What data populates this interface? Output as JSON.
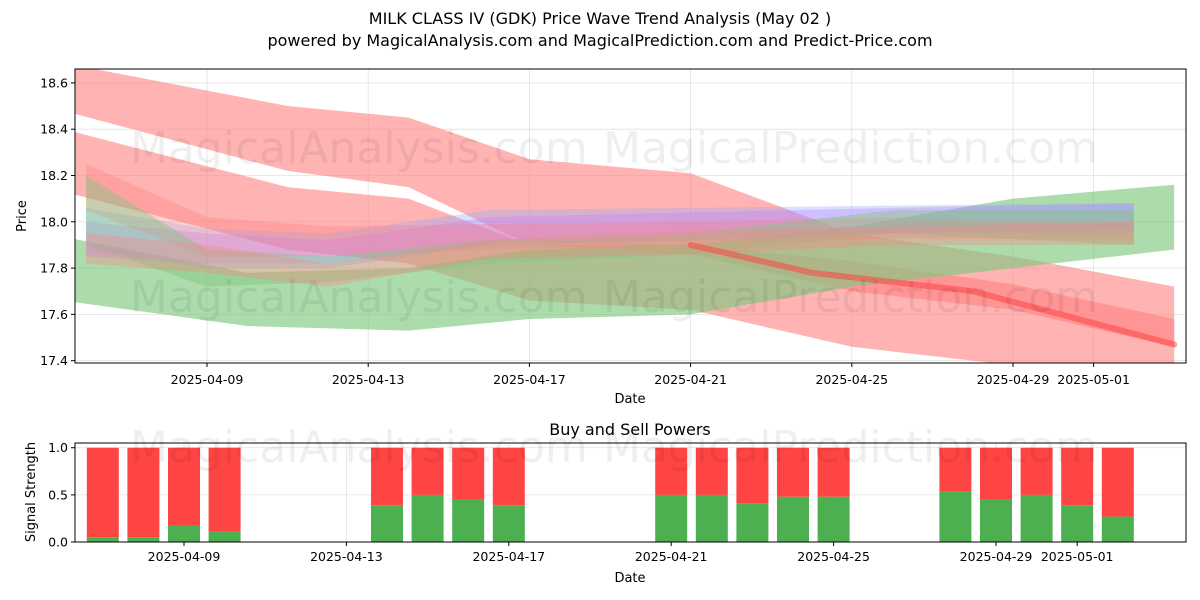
{
  "header": {
    "title": "MILK CLASS IV (GDK) Price Wave Trend Analysis (May 02 )",
    "subtitle": "powered by MagicalAnalysis.com and MagicalPrediction.com and Predict-Price.com"
  },
  "watermarks": [
    "MagicalAnalysis.com",
    "MagicalPrediction.com"
  ],
  "colors": {
    "red": "#ff4444",
    "green": "#4caf50",
    "band_red": "#ff8080",
    "band_green": "#80c880",
    "band_blue": "#8fa8ff",
    "band_purple": "#c080ff"
  },
  "chart_data": [
    {
      "type": "area",
      "title": "",
      "xlabel": "Date",
      "ylabel": "Price",
      "ylim": [
        17.39,
        18.66
      ],
      "yticks": [
        "17.4",
        "17.6",
        "17.8",
        "18.0",
        "18.2",
        "18.4",
        "18.6"
      ],
      "xticks": [
        "2025-04-09",
        "2025-04-13",
        "2025-04-17",
        "2025-04-21",
        "2025-04-25",
        "2025-04-29",
        "2025-05-01"
      ],
      "grid": true,
      "bands": [
        {
          "color": "band_red",
          "opacity": 0.6,
          "x": [
            "2025-04-05",
            "2025-04-11",
            "2025-04-14",
            "2025-04-17",
            "2025-04-21",
            "2025-04-25",
            "2025-04-29",
            "2025-05-03"
          ],
          "upper": [
            18.7,
            18.5,
            18.45,
            18.27,
            18.21,
            17.95,
            17.85,
            17.72
          ],
          "lower": [
            18.5,
            18.22,
            18.15,
            17.9,
            17.86,
            17.7,
            17.62,
            17.46
          ]
        },
        {
          "color": "band_red",
          "opacity": 0.6,
          "x": [
            "2025-04-05",
            "2025-04-11",
            "2025-04-14",
            "2025-04-17",
            "2025-04-21",
            "2025-04-25",
            "2025-04-29",
            "2025-05-03"
          ],
          "upper": [
            18.42,
            18.15,
            18.1,
            17.9,
            17.9,
            17.83,
            17.73,
            17.58
          ],
          "lower": [
            18.15,
            17.88,
            17.82,
            17.66,
            17.62,
            17.46,
            17.38,
            17.26
          ]
        },
        {
          "color": "band_green",
          "opacity": 0.65,
          "x": [
            "2025-04-05",
            "2025-04-10",
            "2025-04-14",
            "2025-04-17",
            "2025-04-21",
            "2025-04-25",
            "2025-04-29",
            "2025-05-03"
          ],
          "upper": [
            17.95,
            17.78,
            17.8,
            17.88,
            17.9,
            17.98,
            18.1,
            18.16
          ],
          "lower": [
            17.67,
            17.55,
            17.53,
            17.58,
            17.6,
            17.72,
            17.8,
            17.88
          ]
        },
        {
          "color": "band_blue",
          "opacity": 0.35,
          "x": [
            "2025-04-06",
            "2025-04-09",
            "2025-04-12",
            "2025-04-16",
            "2025-04-21",
            "2025-04-26",
            "2025-05-02"
          ],
          "upper": [
            18.06,
            17.97,
            17.95,
            18.05,
            18.06,
            18.07,
            18.08
          ],
          "lower": [
            17.88,
            17.8,
            17.8,
            17.9,
            17.92,
            17.95,
            17.95
          ]
        },
        {
          "color": "band_purple",
          "opacity": 0.35,
          "x": [
            "2025-04-06",
            "2025-04-09",
            "2025-04-12",
            "2025-04-16",
            "2025-04-21",
            "2025-04-26",
            "2025-05-02"
          ],
          "upper": [
            18.0,
            17.95,
            17.92,
            18.02,
            18.04,
            18.06,
            18.08
          ],
          "lower": [
            17.85,
            17.82,
            17.82,
            17.9,
            17.92,
            17.95,
            17.97
          ]
        },
        {
          "color": "band_red",
          "opacity": 0.35,
          "x": [
            "2025-04-06",
            "2025-04-09",
            "2025-04-12",
            "2025-04-16",
            "2025-04-21",
            "2025-04-26",
            "2025-05-02"
          ],
          "upper": [
            18.25,
            18.02,
            17.98,
            17.99,
            18.0,
            18.02,
            18.0
          ],
          "lower": [
            18.05,
            17.85,
            17.85,
            17.88,
            17.9,
            17.93,
            17.92
          ]
        },
        {
          "color": "band_green",
          "opacity": 0.45,
          "x": [
            "2025-04-06",
            "2025-04-09",
            "2025-04-12",
            "2025-04-16",
            "2025-04-21",
            "2025-04-26",
            "2025-05-02"
          ],
          "upper": [
            18.2,
            17.88,
            17.85,
            17.92,
            17.95,
            18.05,
            18.05
          ],
          "lower": [
            17.9,
            17.72,
            17.74,
            17.82,
            17.86,
            17.95,
            17.9
          ]
        },
        {
          "color": "band_red",
          "opacity": 0.35,
          "x": [
            "2025-04-06",
            "2025-04-09",
            "2025-04-12",
            "2025-04-16",
            "2025-04-21",
            "2025-04-26",
            "2025-05-02"
          ],
          "upper": [
            17.95,
            17.9,
            17.82,
            17.92,
            17.96,
            17.98,
            18.0
          ],
          "lower": [
            17.82,
            17.78,
            17.72,
            17.84,
            17.86,
            17.9,
            17.9
          ]
        }
      ],
      "trend_line": {
        "color": "red",
        "x": [
          "2025-04-21",
          "2025-04-24",
          "2025-04-28",
          "2025-05-03"
        ],
        "y": [
          17.9,
          17.78,
          17.7,
          17.47
        ]
      }
    },
    {
      "type": "bar",
      "title": "Buy and Sell Powers",
      "xlabel": "Date",
      "ylabel": "Signal Strength",
      "ylim": [
        0,
        1.05
      ],
      "yticks": [
        "0.0",
        "0.5",
        "1.0"
      ],
      "xticks": [
        "2025-04-09",
        "2025-04-13",
        "2025-04-17",
        "2025-04-21",
        "2025-04-25",
        "2025-04-29",
        "2025-05-01"
      ],
      "categories": [
        "2025-04-07",
        "2025-04-08",
        "2025-04-09",
        "2025-04-10",
        "2025-04-14",
        "2025-04-15",
        "2025-04-16",
        "2025-04-17",
        "2025-04-21",
        "2025-04-22",
        "2025-04-23",
        "2025-04-24",
        "2025-04-25",
        "2025-04-28",
        "2025-04-29",
        "2025-04-30",
        "2025-05-01",
        "2025-05-02"
      ],
      "series": [
        {
          "name": "",
          "color": "green",
          "values": [
            0.05,
            0.05,
            0.17,
            0.11,
            0.39,
            0.5,
            0.45,
            0.39,
            0.5,
            0.5,
            0.41,
            0.48,
            0.48,
            0.54,
            0.45,
            0.5,
            0.39,
            0.27
          ]
        },
        {
          "name": "",
          "color": "red",
          "values": [
            0.95,
            0.95,
            0.83,
            0.89,
            0.61,
            0.5,
            0.55,
            0.61,
            0.5,
            0.5,
            0.59,
            0.52,
            0.52,
            0.46,
            0.55,
            0.5,
            0.61,
            0.73
          ]
        }
      ]
    }
  ]
}
